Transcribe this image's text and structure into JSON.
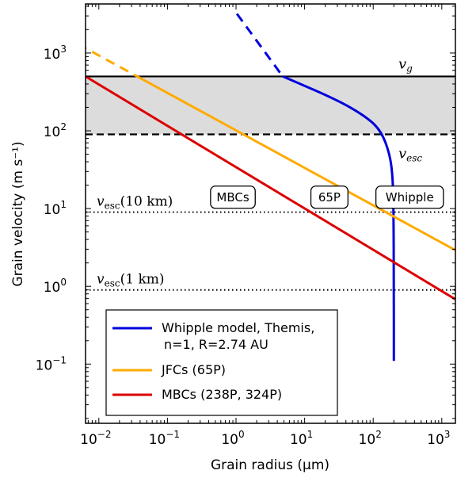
{
  "chart_data": {
    "type": "line",
    "xscale": "log",
    "yscale": "log",
    "xlim": [
      0.005,
      2000
    ],
    "ylim": [
      0.025,
      3000
    ],
    "xlabel": "Grain radius (µm)",
    "ylabel": "Grain velocity (m s⁻¹)",
    "x_ticks": [
      {
        "value": 0.01,
        "base": "10",
        "exp": "-2"
      },
      {
        "value": 0.1,
        "base": "10",
        "exp": "-1"
      },
      {
        "value": 1,
        "base": "10",
        "exp": "0"
      },
      {
        "value": 10,
        "base": "10",
        "exp": "1"
      },
      {
        "value": 100,
        "base": "10",
        "exp": "2"
      },
      {
        "value": 1000,
        "base": "10",
        "exp": "3"
      }
    ],
    "y_ticks": [
      {
        "value": 0.1,
        "base": "10",
        "exp": "-1"
      },
      {
        "value": 1,
        "base": "10",
        "exp": "0"
      },
      {
        "value": 10,
        "base": "10",
        "exp": "1"
      },
      {
        "value": 100,
        "base": "10",
        "exp": "2"
      },
      {
        "value": 1000,
        "base": "10",
        "exp": "3"
      }
    ],
    "reference_lines": [
      {
        "name": "v_g",
        "label": "v",
        "sub": "g",
        "y": 500,
        "style": "solid"
      },
      {
        "name": "v_esc",
        "label": "v",
        "sub": "esc",
        "y": 90,
        "style": "dashed"
      },
      {
        "name": "v_esc_10km",
        "label": "v",
        "sub": "esc",
        "suffix": "(10 km)",
        "y": 9,
        "style": "dotted"
      },
      {
        "name": "v_esc_1km",
        "label": "v",
        "sub": "esc",
        "suffix": "(1 km)",
        "y": 0.9,
        "style": "dotted"
      }
    ],
    "shaded_band": {
      "y_low": 90,
      "y_high": 500,
      "color": "#dcdcdc"
    },
    "series": [
      {
        "name": "Whipple model, Themis,",
        "name_line2": "n=1, R=2.74 AU",
        "color": "#0000dd",
        "points": [
          [
            1.03,
            3200
          ],
          [
            4.8,
            500
          ],
          [
            30,
            250
          ],
          [
            80,
            150
          ],
          [
            130,
            100
          ],
          [
            175,
            50
          ],
          [
            193,
            25
          ],
          [
            198,
            9
          ],
          [
            200,
            1
          ],
          [
            200,
            0.11
          ]
        ],
        "dashed_above": 500
      },
      {
        "name": "JFCs (65P)",
        "color": "#ffaa00",
        "points": [
          [
            0.005,
            1300
          ],
          [
            2000,
            2.6
          ]
        ],
        "dashed_above": 500
      },
      {
        "name": "MBCs (238P, 324P)",
        "color": "#dd0000",
        "points": [
          [
            0.005,
            570
          ],
          [
            2000,
            0.6
          ]
        ],
        "dashed_above": 500
      }
    ],
    "box_labels": [
      {
        "text": "MBCs",
        "x": 0.9,
        "y": 14
      },
      {
        "text": "65P",
        "x": 23,
        "y": 14
      },
      {
        "text": "Whipple",
        "x": 340,
        "y": 14
      }
    ],
    "legend": {
      "position": "lower-center"
    }
  }
}
